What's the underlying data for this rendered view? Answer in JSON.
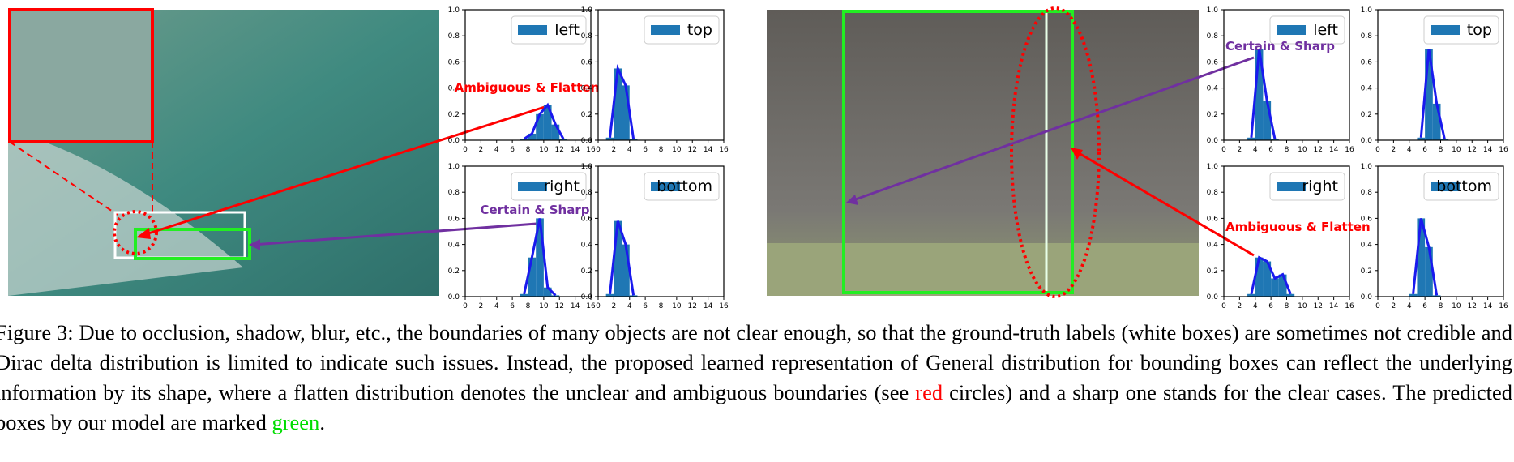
{
  "axes": {
    "xlim": [
      0,
      16
    ],
    "xticks": [
      0,
      2,
      4,
      6,
      8,
      10,
      12,
      14,
      16
    ],
    "ylim": [
      0,
      1
    ],
    "yticks": [
      {
        "value": 0,
        "label": "0.0"
      },
      {
        "value": 0.2,
        "label": "0.2"
      },
      {
        "value": 0.4,
        "label": "0.4"
      },
      {
        "value": 0.6,
        "label": "0.6"
      },
      {
        "value": 0.8,
        "label": "0.8"
      },
      {
        "value": 1,
        "label": "1.0"
      }
    ]
  },
  "charts": [
    {
      "type": "bar",
      "legend": "left",
      "color": "#1f77b4",
      "line_color": "#1a1aee",
      "x": [
        7,
        8,
        9,
        10,
        11,
        12
      ],
      "values": [
        0.01,
        0.05,
        0.2,
        0.27,
        0.12,
        0.01
      ],
      "annotation": {
        "text": "Ambiguous & Flatten",
        "color": "#ff0000"
      }
    },
    {
      "type": "bar",
      "legend": "top",
      "color": "#1f77b4",
      "line_color": "#1a1aee",
      "x": [
        1,
        2,
        3,
        4
      ],
      "values": [
        0.02,
        0.55,
        0.42,
        0.01
      ]
    },
    {
      "type": "bar",
      "legend": "right",
      "color": "#1f77b4",
      "line_color": "#1a1aee",
      "x": [
        7,
        8,
        9,
        10,
        11
      ],
      "values": [
        0.02,
        0.3,
        0.6,
        0.07,
        0.01
      ],
      "annotation": {
        "text": "Certain & Sharp",
        "color": "#7030a0"
      }
    },
    {
      "type": "bar",
      "legend": "bottom",
      "color": "#1f77b4",
      "line_color": "#1a1aee",
      "x": [
        1,
        2,
        3,
        4
      ],
      "values": [
        0.02,
        0.58,
        0.4,
        0.01
      ]
    },
    {
      "type": "bar",
      "legend": "left",
      "color": "#1f77b4",
      "line_color": "#1a1aee",
      "x": [
        3,
        4,
        5,
        6
      ],
      "values": [
        0.02,
        0.7,
        0.3,
        0.01
      ],
      "annotation": {
        "text": "Certain & Sharp",
        "color": "#7030a0"
      }
    },
    {
      "type": "bar",
      "legend": "top",
      "color": "#1f77b4",
      "line_color": "#1a1aee",
      "x": [
        5,
        6,
        7,
        8
      ],
      "values": [
        0.02,
        0.7,
        0.28,
        0.01
      ]
    },
    {
      "type": "bar",
      "legend": "right",
      "color": "#1f77b4",
      "line_color": "#1a1aee",
      "x": [
        3,
        4,
        5,
        6,
        7,
        8
      ],
      "values": [
        0.02,
        0.3,
        0.27,
        0.14,
        0.17,
        0.02
      ],
      "annotation": {
        "text": "Ambiguous & Flatten",
        "color": "#ff0000"
      }
    },
    {
      "type": "bar",
      "legend": "bottom",
      "color": "#1f77b4",
      "line_color": "#1a1aee",
      "x": [
        4,
        5,
        6,
        7
      ],
      "values": [
        0.02,
        0.6,
        0.38,
        0.01
      ]
    }
  ],
  "caption": {
    "parts": [
      {
        "text": "Figure 3: Due to occlusion, shadow, blur, etc., the boundaries of many objects are not clear enough, so that the ground-truth labels (white boxes) are sometimes not credible and Dirac delta distribution is limited to indicate such issues. Instead, the proposed learned representation of General distribution for bounding boxes can reflect the underlying information by its shape, where a flatten distribution denotes the unclear and ambiguous boundaries (see "
      },
      {
        "text": "red",
        "color": "#ff0000"
      },
      {
        "text": " circles) and a sharp one stands for the clear cases. The predicted boxes by our model are marked "
      },
      {
        "text": "green",
        "color": "#00dd00"
      },
      {
        "text": "."
      }
    ]
  }
}
